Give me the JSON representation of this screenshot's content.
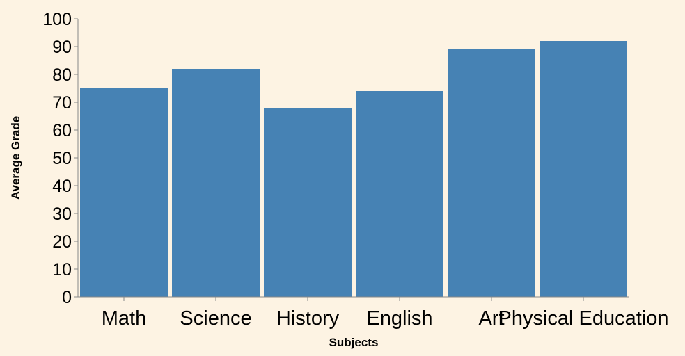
{
  "chart_data": {
    "type": "bar",
    "categories": [
      "Math",
      "Science",
      "History",
      "English",
      "Art",
      "Physical Education"
    ],
    "values": [
      75,
      82,
      68,
      74,
      89,
      92
    ],
    "xlabel": "Subjects",
    "ylabel": "Average Grade",
    "ylim": [
      0,
      100
    ],
    "yticks": [
      0,
      10,
      20,
      30,
      40,
      50,
      60,
      70,
      80,
      90,
      100
    ],
    "grid": false,
    "bar_color": "#4682b4",
    "background_color": "#fdf3e3"
  }
}
